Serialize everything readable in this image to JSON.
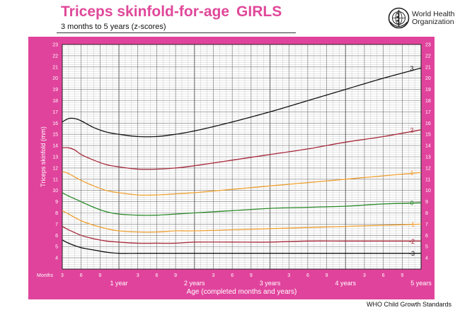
{
  "header": {
    "title_main": "Triceps skinfold-for-age",
    "title_sex": "GIRLS",
    "subtitle": "3 months to 5 years (z-scores)",
    "org_line1": "World Health",
    "org_line2": "Organization"
  },
  "footer": {
    "source": "WHO Child Growth Standards"
  },
  "colors": {
    "frame": "#e0439c",
    "grid_minor": "#b4b4b4",
    "grid_major": "#6e6e6e",
    "plot_bg": "#ffffff",
    "tick_text": "#ffffff"
  },
  "chart_data": {
    "type": "line",
    "title": "Triceps skinfold-for-age GIRLS",
    "xlabel": "Age (completed months and years)",
    "ylabel": "Triceps skinfold (mm)",
    "xlim": [
      3,
      60
    ],
    "ylim": [
      3,
      23
    ],
    "x_unit_label": "Months",
    "month_ticks": [
      {
        "m": 3,
        "t": "3"
      },
      {
        "m": 6,
        "t": "6"
      },
      {
        "m": 9,
        "t": "9"
      },
      {
        "m": 15,
        "t": "3"
      },
      {
        "m": 18,
        "t": "6"
      },
      {
        "m": 21,
        "t": "9"
      },
      {
        "m": 27,
        "t": "3"
      },
      {
        "m": 30,
        "t": "6"
      },
      {
        "m": 33,
        "t": "9"
      },
      {
        "m": 39,
        "t": "3"
      },
      {
        "m": 42,
        "t": "6"
      },
      {
        "m": 45,
        "t": "9"
      },
      {
        "m": 51,
        "t": "3"
      },
      {
        "m": 54,
        "t": "6"
      },
      {
        "m": 57,
        "t": "9"
      }
    ],
    "year_ticks": [
      {
        "m": 12,
        "t": "1 year"
      },
      {
        "m": 24,
        "t": "2 years"
      },
      {
        "m": 36,
        "t": "3 years"
      },
      {
        "m": 48,
        "t": "4 years"
      },
      {
        "m": 60,
        "t": "5 years"
      }
    ],
    "y_ticks": [
      4,
      5,
      6,
      7,
      8,
      9,
      10,
      11,
      12,
      13,
      14,
      15,
      16,
      17,
      18,
      19,
      20,
      21,
      22,
      23
    ],
    "grid": true,
    "series": [
      {
        "name": "3",
        "color": "#111111",
        "x": [
          3,
          4,
          5,
          6,
          8,
          10,
          12,
          15,
          18,
          21,
          24,
          30,
          36,
          42,
          48,
          54,
          60
        ],
        "y": [
          16.1,
          16.4,
          16.4,
          16.2,
          15.6,
          15.2,
          15.0,
          14.8,
          14.8,
          15.0,
          15.3,
          16.1,
          17.0,
          18.0,
          19.0,
          20.0,
          20.9
        ]
      },
      {
        "name": "2",
        "color": "#a8283a",
        "x": [
          3,
          4,
          5,
          6,
          8,
          10,
          12,
          15,
          18,
          21,
          24,
          30,
          36,
          42,
          48,
          54,
          60
        ],
        "y": [
          13.8,
          13.8,
          13.6,
          13.2,
          12.7,
          12.3,
          12.1,
          11.9,
          11.9,
          12.0,
          12.2,
          12.7,
          13.2,
          13.7,
          14.3,
          14.8,
          15.4
        ]
      },
      {
        "name": "1",
        "color": "#f0a030",
        "x": [
          3,
          4,
          6,
          8,
          10,
          12,
          15,
          18,
          21,
          24,
          30,
          36,
          42,
          48,
          54,
          60
        ],
        "y": [
          11.7,
          11.5,
          10.9,
          10.4,
          10.0,
          9.8,
          9.6,
          9.6,
          9.7,
          9.8,
          10.1,
          10.4,
          10.7,
          11.0,
          11.3,
          11.6
        ]
      },
      {
        "name": "0",
        "color": "#2a8a2a",
        "x": [
          3,
          4,
          6,
          8,
          10,
          12,
          15,
          18,
          21,
          24,
          30,
          36,
          42,
          48,
          54,
          60
        ],
        "y": [
          9.8,
          9.5,
          9.0,
          8.5,
          8.1,
          7.9,
          7.8,
          7.8,
          7.9,
          8.0,
          8.2,
          8.4,
          8.5,
          8.6,
          8.8,
          8.9
        ]
      },
      {
        "name": "-1",
        "color": "#f0a030",
        "x": [
          3,
          4,
          6,
          8,
          10,
          12,
          15,
          18,
          21,
          24,
          30,
          36,
          42,
          48,
          54,
          60
        ],
        "y": [
          8.2,
          7.9,
          7.3,
          6.9,
          6.6,
          6.4,
          6.3,
          6.3,
          6.4,
          6.4,
          6.5,
          6.6,
          6.7,
          6.8,
          6.9,
          7.0
        ]
      },
      {
        "name": "-2",
        "color": "#a8283a",
        "x": [
          3,
          4,
          6,
          8,
          10,
          12,
          15,
          18,
          21,
          24,
          30,
          36,
          42,
          48,
          54,
          60
        ],
        "y": [
          6.8,
          6.5,
          6.0,
          5.7,
          5.5,
          5.4,
          5.3,
          5.3,
          5.3,
          5.4,
          5.4,
          5.4,
          5.5,
          5.5,
          5.5,
          5.5
        ]
      },
      {
        "name": "-3",
        "color": "#111111",
        "x": [
          3,
          4,
          6,
          8,
          10,
          12,
          15,
          18,
          21,
          24,
          30,
          36,
          42,
          48,
          54,
          60
        ],
        "y": [
          5.6,
          5.3,
          4.9,
          4.7,
          4.5,
          4.4,
          4.4,
          4.4,
          4.4,
          4.4,
          4.4,
          4.4,
          4.4,
          4.4,
          4.4,
          4.4
        ]
      }
    ]
  }
}
